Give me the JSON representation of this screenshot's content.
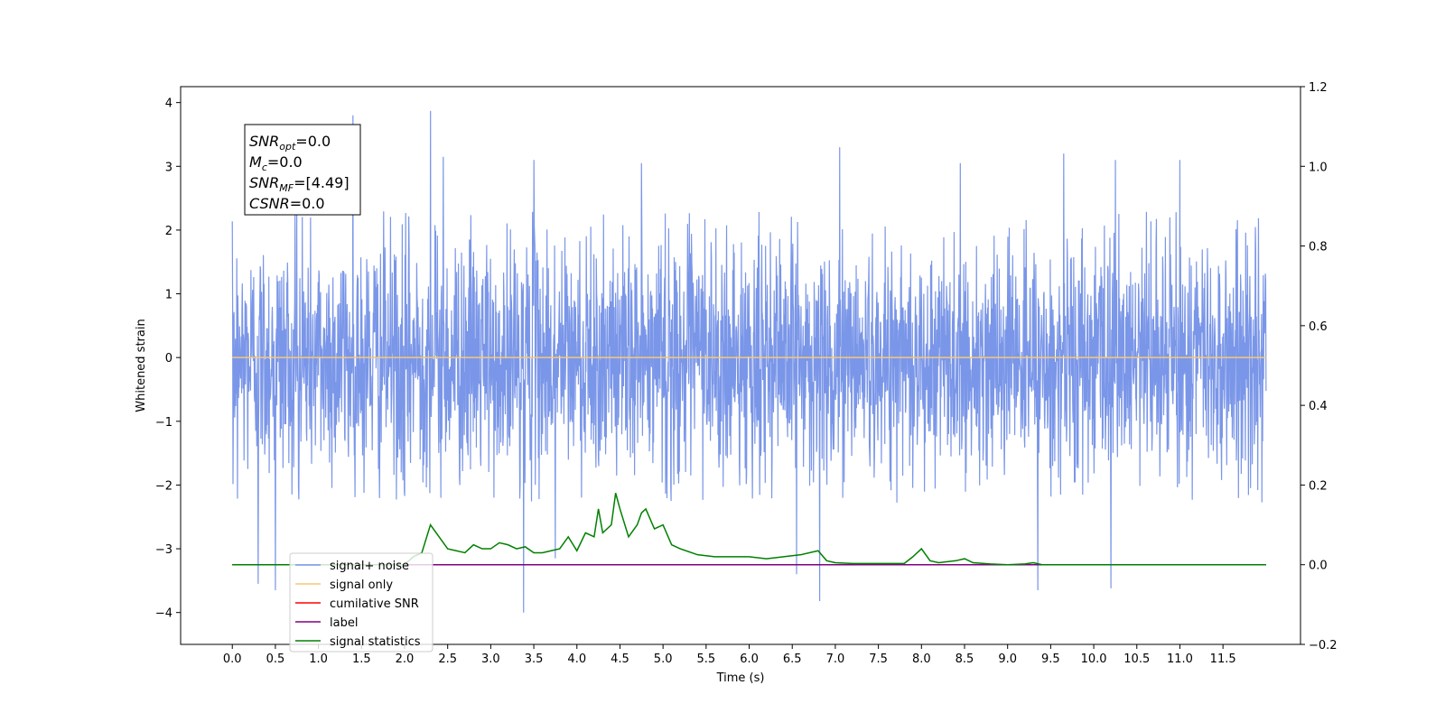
{
  "chart_data": {
    "type": "line",
    "title": "",
    "xlabel": "Time (s)",
    "ylabel": "Whitened strain",
    "ylabel_right": "",
    "xlim": [
      -0.6,
      12.4
    ],
    "ylim": [
      -4.5,
      4.25
    ],
    "ylim_right": [
      -0.2,
      1.2
    ],
    "x_ticks": [
      "0.0",
      "0.5",
      "1.0",
      "1.5",
      "2.0",
      "2.5",
      "3.0",
      "3.5",
      "4.0",
      "4.5",
      "5.0",
      "5.5",
      "6.0",
      "6.5",
      "7.0",
      "7.5",
      "8.0",
      "8.5",
      "9.0",
      "9.5",
      "10.0",
      "10.5",
      "11.0",
      "11.5"
    ],
    "y_ticks": [
      "4",
      "3",
      "2",
      "1",
      "0",
      "−1",
      "−2",
      "−3",
      "−4"
    ],
    "y_ticks_right": [
      "1.2",
      "1.0",
      "0.8",
      "0.6",
      "0.4",
      "0.2",
      "0.0",
      "−0.2"
    ],
    "grid": false,
    "legend_placement": "lower-left",
    "series": [
      {
        "name": "signal+ noise",
        "color": "#7a96e8",
        "axis": "left",
        "kind": "noise",
        "x_range": [
          0.0,
          12.0
        ],
        "amplitude_typical": 2.3,
        "peaks": [
          {
            "x": 0.3,
            "y": -3.55
          },
          {
            "x": 0.5,
            "y": -3.65
          },
          {
            "x": 1.4,
            "y": 3.8
          },
          {
            "x": 2.3,
            "y": 3.87
          },
          {
            "x": 2.45,
            "y": 3.15
          },
          {
            "x": 3.38,
            "y": -4.0
          },
          {
            "x": 3.5,
            "y": 3.1
          },
          {
            "x": 3.75,
            "y": -3.15
          },
          {
            "x": 4.75,
            "y": 3.05
          },
          {
            "x": 6.55,
            "y": -3.4
          },
          {
            "x": 6.82,
            "y": -3.82
          },
          {
            "x": 7.05,
            "y": 3.3
          },
          {
            "x": 8.45,
            "y": 3.05
          },
          {
            "x": 9.35,
            "y": -3.65
          },
          {
            "x": 9.65,
            "y": 3.2
          },
          {
            "x": 10.2,
            "y": -3.62
          },
          {
            "x": 10.25,
            "y": 3.1
          },
          {
            "x": 11.0,
            "y": 3.1
          }
        ]
      },
      {
        "name": "signal only",
        "color": "#f5c77a",
        "axis": "left",
        "x": [
          0.0,
          12.0
        ],
        "y": [
          0.0,
          0.0
        ]
      },
      {
        "name": "cumilative SNR",
        "color": "#ff0000",
        "axis": "right",
        "x": [
          0.0,
          12.0
        ],
        "y": [
          0.0,
          0.0
        ]
      },
      {
        "name": "label",
        "color": "#800080",
        "axis": "right",
        "x": [
          0.0,
          12.0
        ],
        "y": [
          0.0,
          0.0
        ]
      },
      {
        "name": "signal statistics",
        "color": "#008000",
        "axis": "right",
        "x": [
          0.0,
          1.0,
          2.0,
          2.1,
          2.2,
          2.3,
          2.4,
          2.5,
          2.6,
          2.7,
          2.8,
          2.9,
          3.0,
          3.1,
          3.2,
          3.3,
          3.4,
          3.5,
          3.6,
          3.7,
          3.8,
          3.9,
          4.0,
          4.1,
          4.2,
          4.25,
          4.3,
          4.4,
          4.45,
          4.5,
          4.6,
          4.7,
          4.75,
          4.8,
          4.9,
          5.0,
          5.1,
          5.2,
          5.4,
          5.6,
          5.8,
          6.0,
          6.2,
          6.4,
          6.6,
          6.8,
          6.9,
          7.0,
          7.2,
          7.4,
          7.6,
          7.8,
          7.9,
          8.0,
          8.1,
          8.2,
          8.4,
          8.5,
          8.6,
          8.8,
          9.0,
          9.2,
          9.3,
          9.4,
          9.6,
          10.0,
          11.0,
          12.0
        ],
        "y": [
          0.0,
          0.0,
          0.0,
          0.02,
          0.03,
          0.1,
          0.07,
          0.04,
          0.035,
          0.03,
          0.05,
          0.04,
          0.04,
          0.055,
          0.05,
          0.04,
          0.045,
          0.03,
          0.03,
          0.035,
          0.04,
          0.07,
          0.035,
          0.08,
          0.07,
          0.14,
          0.08,
          0.1,
          0.18,
          0.14,
          0.07,
          0.1,
          0.13,
          0.14,
          0.09,
          0.1,
          0.05,
          0.04,
          0.025,
          0.02,
          0.02,
          0.02,
          0.015,
          0.02,
          0.025,
          0.035,
          0.01,
          0.005,
          0.003,
          0.003,
          0.003,
          0.003,
          0.02,
          0.04,
          0.01,
          0.005,
          0.01,
          0.015,
          0.005,
          0.002,
          0.0,
          0.002,
          0.005,
          0.0,
          0.0,
          0.0,
          0.0,
          0.0
        ]
      }
    ],
    "annotation": {
      "lines": [
        {
          "sym": "SNR",
          "sub": "opt",
          "val": "=0.0"
        },
        {
          "sym": "M",
          "sub": "c",
          "val": "=0.0"
        },
        {
          "sym": "SNR",
          "sub": "MF",
          "val": "=[4.49]"
        },
        {
          "sym": "CSNR",
          "sub": "",
          "val": "=0.0"
        }
      ]
    },
    "legend": [
      {
        "label": "signal+ noise",
        "color": "#7a96e8"
      },
      {
        "label": "signal only",
        "color": "#f5c77a"
      },
      {
        "label": "cumilative SNR",
        "color": "#ff0000"
      },
      {
        "label": "label",
        "color": "#800080"
      },
      {
        "label": "signal statistics",
        "color": "#008000"
      }
    ]
  }
}
